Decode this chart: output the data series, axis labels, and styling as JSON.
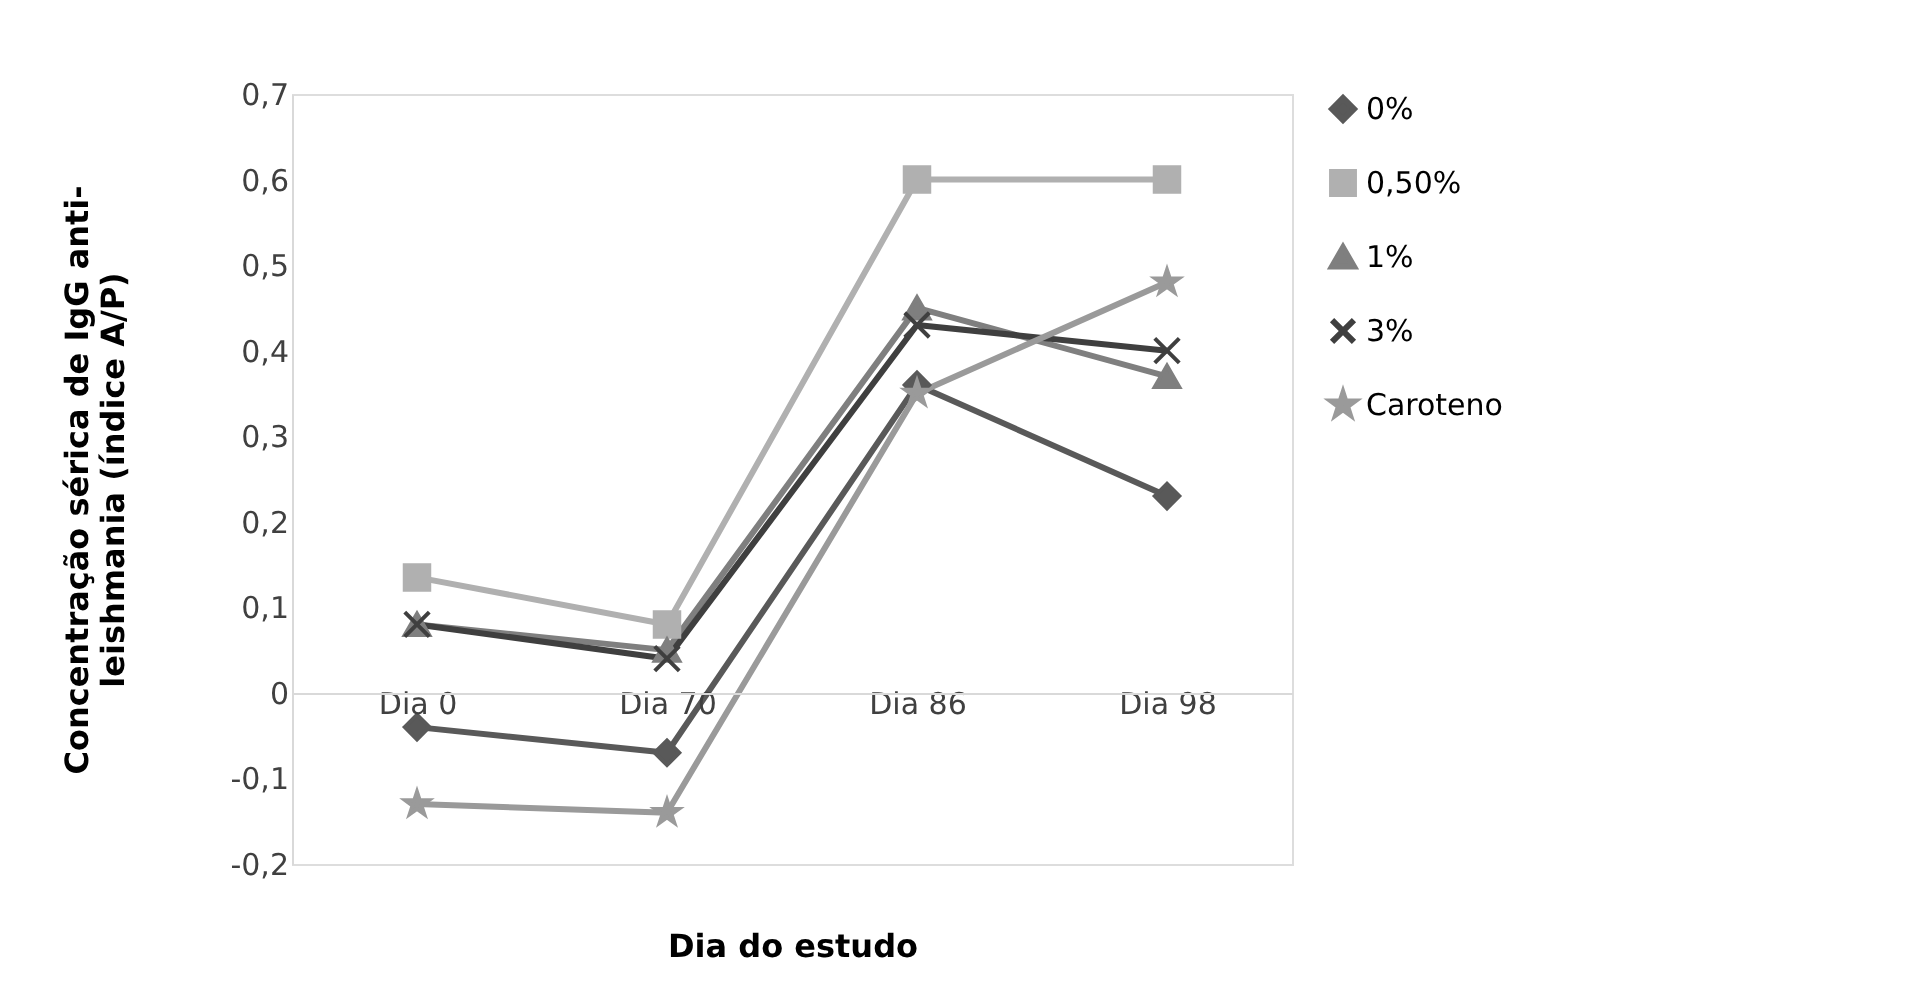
{
  "chart_data": {
    "type": "line",
    "xlabel": "Dia do estudo",
    "ylabel": "Concentração sérica de IgG anti-\nleishmania (índice A/P)",
    "categories": [
      "Dia 0",
      "Dia 70",
      "Dia 86",
      "Dia 98"
    ],
    "ylim": [
      -0.2,
      0.7
    ],
    "yticks": [
      {
        "value": -0.2,
        "label": "-0,2"
      },
      {
        "value": -0.1,
        "label": "-0,1"
      },
      0,
      {
        "value": 0.1,
        "label": "0,1"
      },
      {
        "value": 0.2,
        "label": "0,2"
      },
      {
        "value": 0.3,
        "label": "0,3"
      },
      {
        "value": 0.4,
        "label": "0,4"
      },
      {
        "value": 0.5,
        "label": "0,5"
      },
      {
        "value": 0.6,
        "label": "0,6"
      },
      {
        "value": 0.7,
        "label": "0,7"
      }
    ],
    "grid": false,
    "legend": "right",
    "line_style": "solid",
    "series": [
      {
        "name": "0%",
        "color": "#595959",
        "marker": "diamond",
        "values": [
          -0.04,
          -0.07,
          0.36,
          0.23
        ]
      },
      {
        "name": "0,50%",
        "color": "#b0b0b0",
        "marker": "square",
        "values": [
          0.135,
          0.08,
          0.6,
          0.6
        ]
      },
      {
        "name": "1%",
        "color": "#7f7f7f",
        "marker": "triangle",
        "values": [
          0.08,
          0.05,
          0.45,
          0.37
        ]
      },
      {
        "name": "3%",
        "color": "#3f3f3f",
        "marker": "cross",
        "values": [
          0.08,
          0.04,
          0.43,
          0.4
        ]
      },
      {
        "name": "Caroteno",
        "color": "#9a9a9a",
        "marker": "star",
        "values": [
          -0.13,
          -0.14,
          0.35,
          0.48
        ]
      }
    ]
  }
}
